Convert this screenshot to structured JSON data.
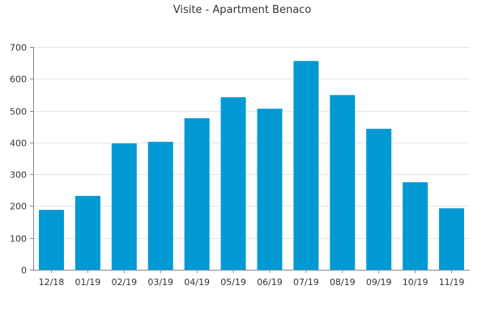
{
  "chart_data": {
    "type": "bar",
    "title": "Visite - Apartment Benaco",
    "xlabel": "",
    "ylabel": "",
    "categories": [
      "12/18",
      "01/19",
      "02/19",
      "03/19",
      "04/19",
      "05/19",
      "06/19",
      "07/19",
      "08/19",
      "09/19",
      "10/19",
      "11/19"
    ],
    "values": [
      188,
      232,
      397,
      402,
      476,
      542,
      506,
      656,
      549,
      443,
      275,
      193
    ],
    "ylim": [
      0,
      700
    ],
    "yticks": [
      0,
      100,
      200,
      300,
      400,
      500,
      600,
      700
    ],
    "grid": true,
    "legend": "none",
    "colors": {
      "bar": "#0099d4",
      "grid": "#e6e6e6",
      "axis": "#888888"
    }
  }
}
